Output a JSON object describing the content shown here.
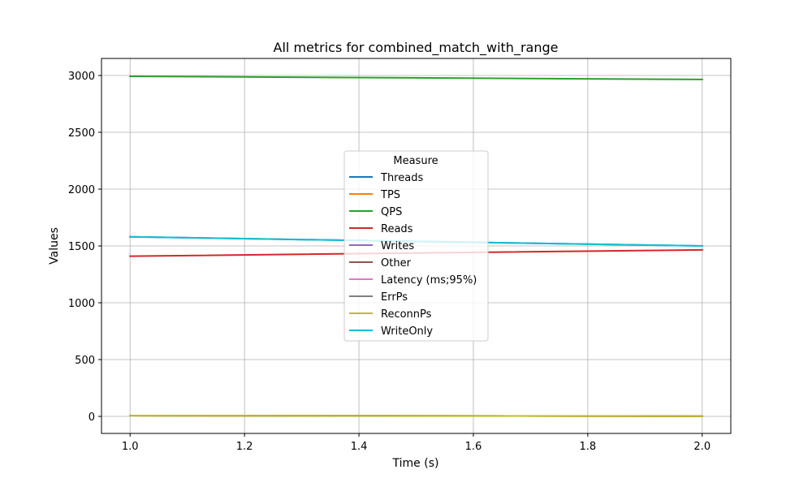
{
  "chart_data": {
    "type": "line",
    "title": "All metrics for combined_match_with_range",
    "xlabel": "Time (s)",
    "ylabel": "Values",
    "xlim": [
      0.95,
      2.05
    ],
    "ylim": [
      -150,
      3150
    ],
    "xticks": [
      1.0,
      1.2,
      1.4,
      1.6,
      1.8,
      2.0
    ],
    "xtick_labels": [
      "1.0",
      "1.2",
      "1.4",
      "1.6",
      "1.8",
      "2.0"
    ],
    "yticks": [
      0,
      500,
      1000,
      1500,
      2000,
      2500,
      3000
    ],
    "ytick_labels": [
      "0",
      "500",
      "1000",
      "1500",
      "2000",
      "2500",
      "3000"
    ],
    "grid": true,
    "legend": {
      "title": "Measure",
      "placement": "center"
    },
    "x": [
      1.0,
      2.0
    ],
    "series": [
      {
        "name": "Threads",
        "color": "#1f77b4",
        "values": [
          1580,
          1500
        ]
      },
      {
        "name": "TPS",
        "color": "#ff7f0e",
        "values": [
          7,
          2
        ]
      },
      {
        "name": "QPS",
        "color": "#2ca02c",
        "values": [
          2993,
          2965
        ]
      },
      {
        "name": "Reads",
        "color": "#d62728",
        "values": [
          1410,
          1465
        ]
      },
      {
        "name": "Writes",
        "color": "#9467bd",
        "values": [
          7,
          2
        ]
      },
      {
        "name": "Other",
        "color": "#8c564b",
        "values": [
          7,
          2
        ]
      },
      {
        "name": "Latency (ms;95%)",
        "color": "#e377c2",
        "values": [
          7,
          2
        ]
      },
      {
        "name": "ErrPs",
        "color": "#7f7f7f",
        "values": [
          7,
          2
        ]
      },
      {
        "name": "ReconnPs",
        "color": "#bcbd22",
        "values": [
          7,
          2
        ]
      },
      {
        "name": "WriteOnly",
        "color": "#17becf",
        "values": [
          1580,
          1500
        ]
      }
    ]
  }
}
